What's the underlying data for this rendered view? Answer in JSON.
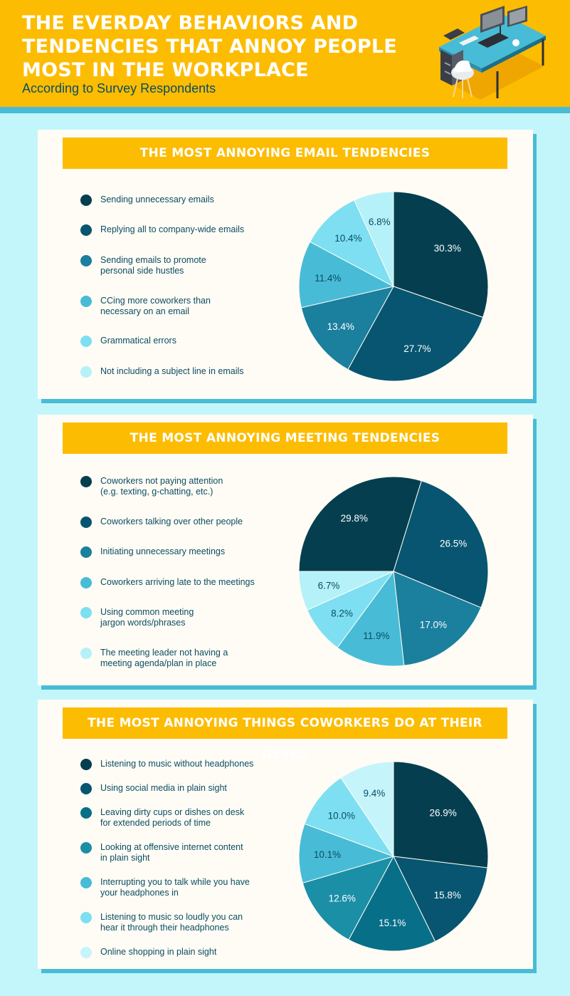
{
  "header": {
    "title": "THE EVERDAY BEHAVIORS AND TENDENCIES THAT ANNOY PEOPLE MOST IN THE WORKPLACE",
    "subtitle": "According to Survey Respondents",
    "illustration": "office-desk-illustration"
  },
  "colors": {
    "header_bg": "#fcbc02",
    "page_bg": "#c3f6fb",
    "accent_shadow": "#48bcd6",
    "text_dark": "#0a4d62"
  },
  "chart_data": [
    {
      "type": "pie",
      "title": "THE MOST ANNOYING EMAIL TENDENCIES",
      "categories": [
        "Sending unnecessary emails",
        "Replying all to company-wide emails",
        "Sending emails to promote\npersonal side hustles",
        "CCing more coworkers than\nnecessary on an email",
        "Grammatical errors",
        "Not including a subject line in emails"
      ],
      "values": [
        30.3,
        27.7,
        13.4,
        11.4,
        10.4,
        6.8
      ],
      "labels": [
        "30.3%",
        "27.7%",
        "13.4%",
        "11.4%",
        "10.4%",
        "6.8%"
      ],
      "colors": [
        "#053f4f",
        "#075570",
        "#1b7f9e",
        "#48bcd6",
        "#7ddff1",
        "#b5f1f8"
      ],
      "label_colors": [
        "#ffffff",
        "#ffffff",
        "#ffffff",
        "#0a4d62",
        "#0a4d62",
        "#0a4d62"
      ],
      "legend": "left"
    },
    {
      "type": "pie",
      "title": "THE MOST ANNOYING MEETING TENDENCIES",
      "categories": [
        "Coworkers not paying attention\n(e.g. texting, g-chatting, etc.)",
        "Coworkers talking over other people",
        "Initiating unnecessary meetings",
        "Coworkers arriving late to the meetings",
        "Using common meeting\njargon words/phrases",
        "The meeting leader not having a\nmeeting agenda/plan in place"
      ],
      "values": [
        29.8,
        26.5,
        17.0,
        11.9,
        8.2,
        6.7
      ],
      "labels": [
        "29.8%",
        "26.5%",
        "17.0%",
        "11.9%",
        "8.2%",
        "6.7%"
      ],
      "colors": [
        "#053f4f",
        "#075570",
        "#1b7f9e",
        "#48bcd6",
        "#7ddff1",
        "#b5f1f8"
      ],
      "label_colors": [
        "#ffffff",
        "#ffffff",
        "#ffffff",
        "#0a4d62",
        "#0a4d62",
        "#0a4d62"
      ],
      "legend": "left"
    },
    {
      "type": "pie",
      "title": "THE MOST ANNOYING THINGS COWORKERS DO AT THEIR DESKS",
      "categories": [
        "Listening to music without headphones",
        "Using social media in plain sight",
        "Leaving dirty cups or dishes on desk\nfor extended periods of time",
        "Looking at offensive internet content\nin plain sight",
        "Interrupting you to talk while you have\nyour headphones in",
        "Listening to music so loudly you can\nhear it through their headphones",
        "Online shopping in plain sight"
      ],
      "values": [
        26.9,
        15.8,
        15.1,
        12.6,
        10.1,
        10.0,
        9.4
      ],
      "labels": [
        "26.9%",
        "15.8%",
        "15.1%",
        "12.6%",
        "10.1%",
        "10.0%",
        "9.4%"
      ],
      "colors": [
        "#053f4f",
        "#075570",
        "#086f88",
        "#1a8fa6",
        "#48bcd6",
        "#7ddff1",
        "#c5f5fb"
      ],
      "label_colors": [
        "#ffffff",
        "#ffffff",
        "#ffffff",
        "#ffffff",
        "#0a4d62",
        "#0a4d62",
        "#0a4d62"
      ],
      "legend": "left"
    }
  ]
}
